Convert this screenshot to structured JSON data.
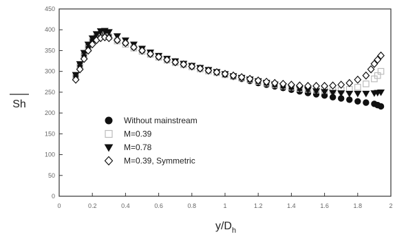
{
  "chart_data": {
    "type": "scatter",
    "xlabel": "y/D",
    "xlabel_sub": "h",
    "ylabel": "Sh",
    "xlim": [
      0,
      2
    ],
    "ylim": [
      0,
      450
    ],
    "xticks": [
      "0",
      "0.2",
      "0.4",
      "0.6",
      "0.8",
      "1",
      "1.2",
      "1.4",
      "1.6",
      "1.8",
      "2"
    ],
    "yticks": [
      "0",
      "50",
      "100",
      "150",
      "200",
      "250",
      "300",
      "350",
      "400",
      "450"
    ],
    "grid": false,
    "legend_position": "bottom-left",
    "series": [
      {
        "name": "Without mainstream",
        "marker": "circle",
        "color": "#111111",
        "x": [
          0.1,
          0.125,
          0.15,
          0.175,
          0.2,
          0.225,
          0.25,
          0.275,
          0.3,
          0.35,
          0.4,
          0.45,
          0.5,
          0.55,
          0.6,
          0.65,
          0.7,
          0.75,
          0.8,
          0.85,
          0.9,
          0.95,
          1.0,
          1.05,
          1.1,
          1.15,
          1.2,
          1.25,
          1.3,
          1.35,
          1.4,
          1.45,
          1.5,
          1.55,
          1.6,
          1.65,
          1.7,
          1.75,
          1.8,
          1.85,
          1.9,
          1.92,
          1.94
        ],
        "y": [
          290,
          315,
          340,
          360,
          375,
          385,
          392,
          393,
          385,
          375,
          368,
          358,
          350,
          342,
          335,
          328,
          322,
          317,
          312,
          307,
          302,
          297,
          292,
          287,
          282,
          277,
          272,
          268,
          264,
          260,
          256,
          252,
          248,
          245,
          242,
          238,
          235,
          232,
          228,
          225,
          222,
          219,
          216
        ]
      },
      {
        "name": "M=0.39",
        "marker": "square",
        "color": "#bbbbbb",
        "x": [
          0.1,
          0.125,
          0.15,
          0.175,
          0.2,
          0.225,
          0.25,
          0.275,
          0.3,
          0.35,
          0.4,
          0.45,
          0.5,
          0.55,
          0.6,
          0.65,
          0.7,
          0.75,
          0.8,
          0.85,
          0.9,
          0.95,
          1.0,
          1.05,
          1.1,
          1.15,
          1.2,
          1.25,
          1.3,
          1.35,
          1.4,
          1.45,
          1.5,
          1.55,
          1.6,
          1.65,
          1.7,
          1.75,
          1.8,
          1.85,
          1.9,
          1.92,
          1.94
        ],
        "y": [
          285,
          310,
          335,
          355,
          372,
          382,
          388,
          390,
          383,
          373,
          365,
          356,
          348,
          341,
          334,
          327,
          321,
          316,
          311,
          306,
          301,
          297,
          292,
          288,
          284,
          280,
          276,
          272,
          268,
          265,
          262,
          259,
          257,
          255,
          254,
          254,
          255,
          257,
          262,
          270,
          282,
          290,
          300
        ]
      },
      {
        "name": "M=0.78",
        "marker": "triangle-down",
        "color": "#111111",
        "x": [
          0.1,
          0.125,
          0.15,
          0.175,
          0.2,
          0.225,
          0.25,
          0.275,
          0.3,
          0.35,
          0.4,
          0.45,
          0.5,
          0.55,
          0.6,
          0.65,
          0.7,
          0.75,
          0.8,
          0.85,
          0.9,
          0.95,
          1.0,
          1.05,
          1.1,
          1.15,
          1.2,
          1.25,
          1.3,
          1.35,
          1.4,
          1.45,
          1.5,
          1.55,
          1.6,
          1.65,
          1.7,
          1.75,
          1.8,
          1.85,
          1.9,
          1.92,
          1.94
        ],
        "y": [
          292,
          318,
          345,
          365,
          380,
          390,
          397,
          398,
          395,
          385,
          375,
          365,
          355,
          346,
          338,
          331,
          325,
          319,
          314,
          309,
          304,
          299,
          294,
          289,
          285,
          281,
          277,
          273,
          269,
          265,
          262,
          259,
          256,
          253,
          251,
          249,
          248,
          247,
          247,
          247,
          248,
          249,
          250
        ]
      },
      {
        "name": "M=0.39, Symmetric",
        "marker": "diamond",
        "color": "#111111",
        "x": [
          0.1,
          0.125,
          0.15,
          0.175,
          0.2,
          0.225,
          0.25,
          0.275,
          0.3,
          0.35,
          0.4,
          0.45,
          0.5,
          0.55,
          0.6,
          0.65,
          0.7,
          0.75,
          0.8,
          0.85,
          0.9,
          0.95,
          1.0,
          1.05,
          1.1,
          1.15,
          1.2,
          1.25,
          1.3,
          1.35,
          1.4,
          1.45,
          1.5,
          1.55,
          1.6,
          1.65,
          1.7,
          1.75,
          1.8,
          1.85,
          1.88,
          1.9,
          1.92,
          1.94
        ],
        "y": [
          280,
          305,
          330,
          350,
          365,
          375,
          380,
          382,
          380,
          375,
          368,
          358,
          350,
          342,
          335,
          328,
          322,
          317,
          312,
          307,
          302,
          298,
          294,
          290,
          286,
          282,
          278,
          275,
          272,
          270,
          268,
          266,
          265,
          265,
          265,
          266,
          268,
          272,
          280,
          290,
          305,
          318,
          328,
          338
        ]
      }
    ]
  }
}
